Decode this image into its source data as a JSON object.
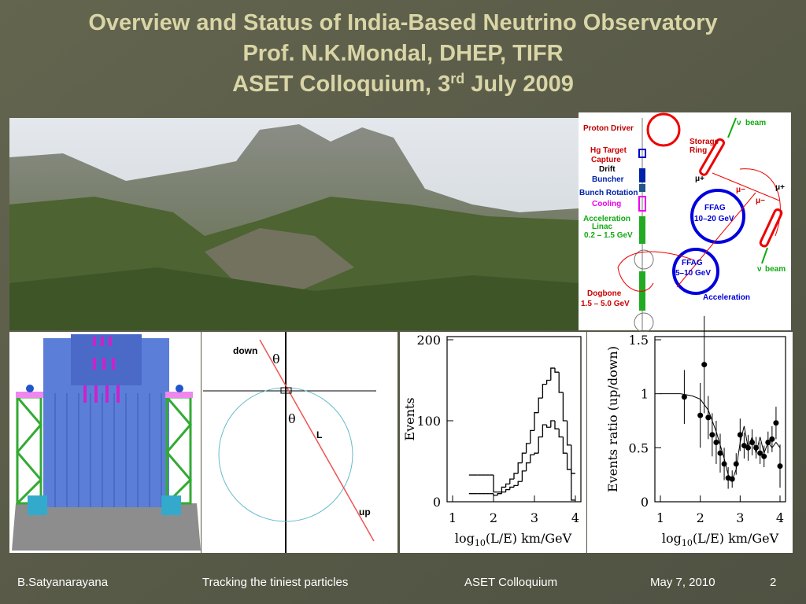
{
  "title": {
    "line1": "Overview and Status of India-Based Neutrino Observatory",
    "line2": "Prof. N.K.Mondal, DHEP, TIFR",
    "line3": "ASET Colloquium, 3",
    "line3_sup": "rd",
    "line3_end": " July 2009"
  },
  "factory_diagram": {
    "labels": [
      "Proton Driver",
      "Hg  Target",
      "Capture",
      "Drift",
      "Buncher",
      "Bunch Rotation",
      "Cooling",
      "Acceleration",
      "Linac",
      "0.2 – 1.5 GeV",
      "Dogbone",
      "1.5 – 5.0 GeV",
      "Storage",
      "Ring",
      "ν",
      "beam",
      "FFAG",
      "10–20 GeV",
      "FFAG",
      "5–10 GeV",
      "Acceleration",
      "ν",
      "beam",
      "μ+",
      "μ−",
      "μ+",
      "μ−"
    ]
  },
  "geometry": {
    "down": "down",
    "theta_top": "θ",
    "theta_bottom": "θ",
    "path": "L",
    "up": "up"
  },
  "chart_data": [
    {
      "type": "histogram",
      "ylabel": "Events",
      "xlabel": "log",
      "xlabel_sub": "10",
      "xlabel_end": "(L/E)  km/GeV",
      "xlim": [
        1,
        4
      ],
      "ylim": [
        0,
        200
      ],
      "xticks": [
        1,
        2,
        3,
        4
      ],
      "yticks": [
        0,
        100,
        200
      ],
      "bins": [
        1.4,
        1.5,
        1.6,
        1.7,
        1.8,
        1.9,
        2.0,
        2.1,
        2.2,
        2.3,
        2.4,
        2.5,
        2.6,
        2.7,
        2.8,
        2.9,
        3.0,
        3.1,
        3.2,
        3.3,
        3.4,
        3.5,
        3.6,
        3.7,
        3.8,
        3.9,
        4.0
      ],
      "series": [
        {
          "color": "#000000",
          "values": [
            33,
            33,
            33,
            33,
            33,
            33,
            12,
            12,
            18,
            22,
            28,
            35,
            48,
            60,
            72,
            88,
            110,
            128,
            145,
            150,
            165,
            160,
            135,
            100,
            70,
            35
          ]
        },
        {
          "color": "#000000",
          "values": [
            10,
            10,
            10,
            10,
            10,
            10,
            8,
            10,
            12,
            15,
            18,
            20,
            25,
            38,
            48,
            58,
            60,
            80,
            95,
            92,
            100,
            90,
            80,
            60,
            40,
            2
          ]
        }
      ]
    },
    {
      "type": "ratio",
      "ylabel": "Events ratio (up/down)",
      "xlabel": "log",
      "xlabel_sub": "10",
      "xlabel_end": "(L/E)  km/GeV",
      "xlim": [
        1,
        4
      ],
      "ylim": [
        0,
        1.5
      ],
      "xticks": [
        1,
        2,
        3,
        4
      ],
      "yticks": [
        0,
        0.5,
        1,
        1.5
      ],
      "points": {
        "x": [
          1.6,
          2.0,
          2.1,
          2.2,
          2.3,
          2.4,
          2.5,
          2.6,
          2.7,
          2.8,
          2.9,
          3.0,
          3.1,
          3.2,
          3.3,
          3.4,
          3.5,
          3.6,
          3.7,
          3.8,
          3.9,
          4.0
        ],
        "values": [
          0.97,
          0.8,
          1.27,
          0.78,
          0.62,
          0.55,
          0.45,
          0.35,
          0.22,
          0.21,
          0.35,
          0.62,
          0.52,
          0.5,
          0.55,
          0.5,
          0.45,
          0.42,
          0.55,
          0.58,
          0.73,
          0.33
        ],
        "errors": [
          0.25,
          0.3,
          0.45,
          0.2,
          0.2,
          0.2,
          0.18,
          0.15,
          0.1,
          0.08,
          0.1,
          0.15,
          0.12,
          0.12,
          0.12,
          0.1,
          0.1,
          0.1,
          0.1,
          0.12,
          0.15,
          0.2
        ]
      },
      "curve": {
        "x": [
          1.0,
          1.5,
          1.8,
          2.0,
          2.2,
          2.4,
          2.6,
          2.7,
          2.8,
          2.9,
          3.0,
          3.1,
          3.2,
          3.3,
          3.4,
          3.5,
          3.6,
          3.7,
          3.8,
          3.9,
          4.0
        ],
        "values": [
          1.0,
          1.0,
          0.98,
          0.95,
          0.85,
          0.65,
          0.4,
          0.25,
          0.2,
          0.3,
          0.55,
          0.7,
          0.5,
          0.6,
          0.45,
          0.6,
          0.45,
          0.55,
          0.5,
          0.55,
          0.5
        ]
      }
    }
  ],
  "footer": {
    "author": "B.Satyanarayana",
    "topic": "Tracking the tiniest particles",
    "event": "ASET Colloquium",
    "date": "May 7, 2010",
    "page": "2"
  }
}
